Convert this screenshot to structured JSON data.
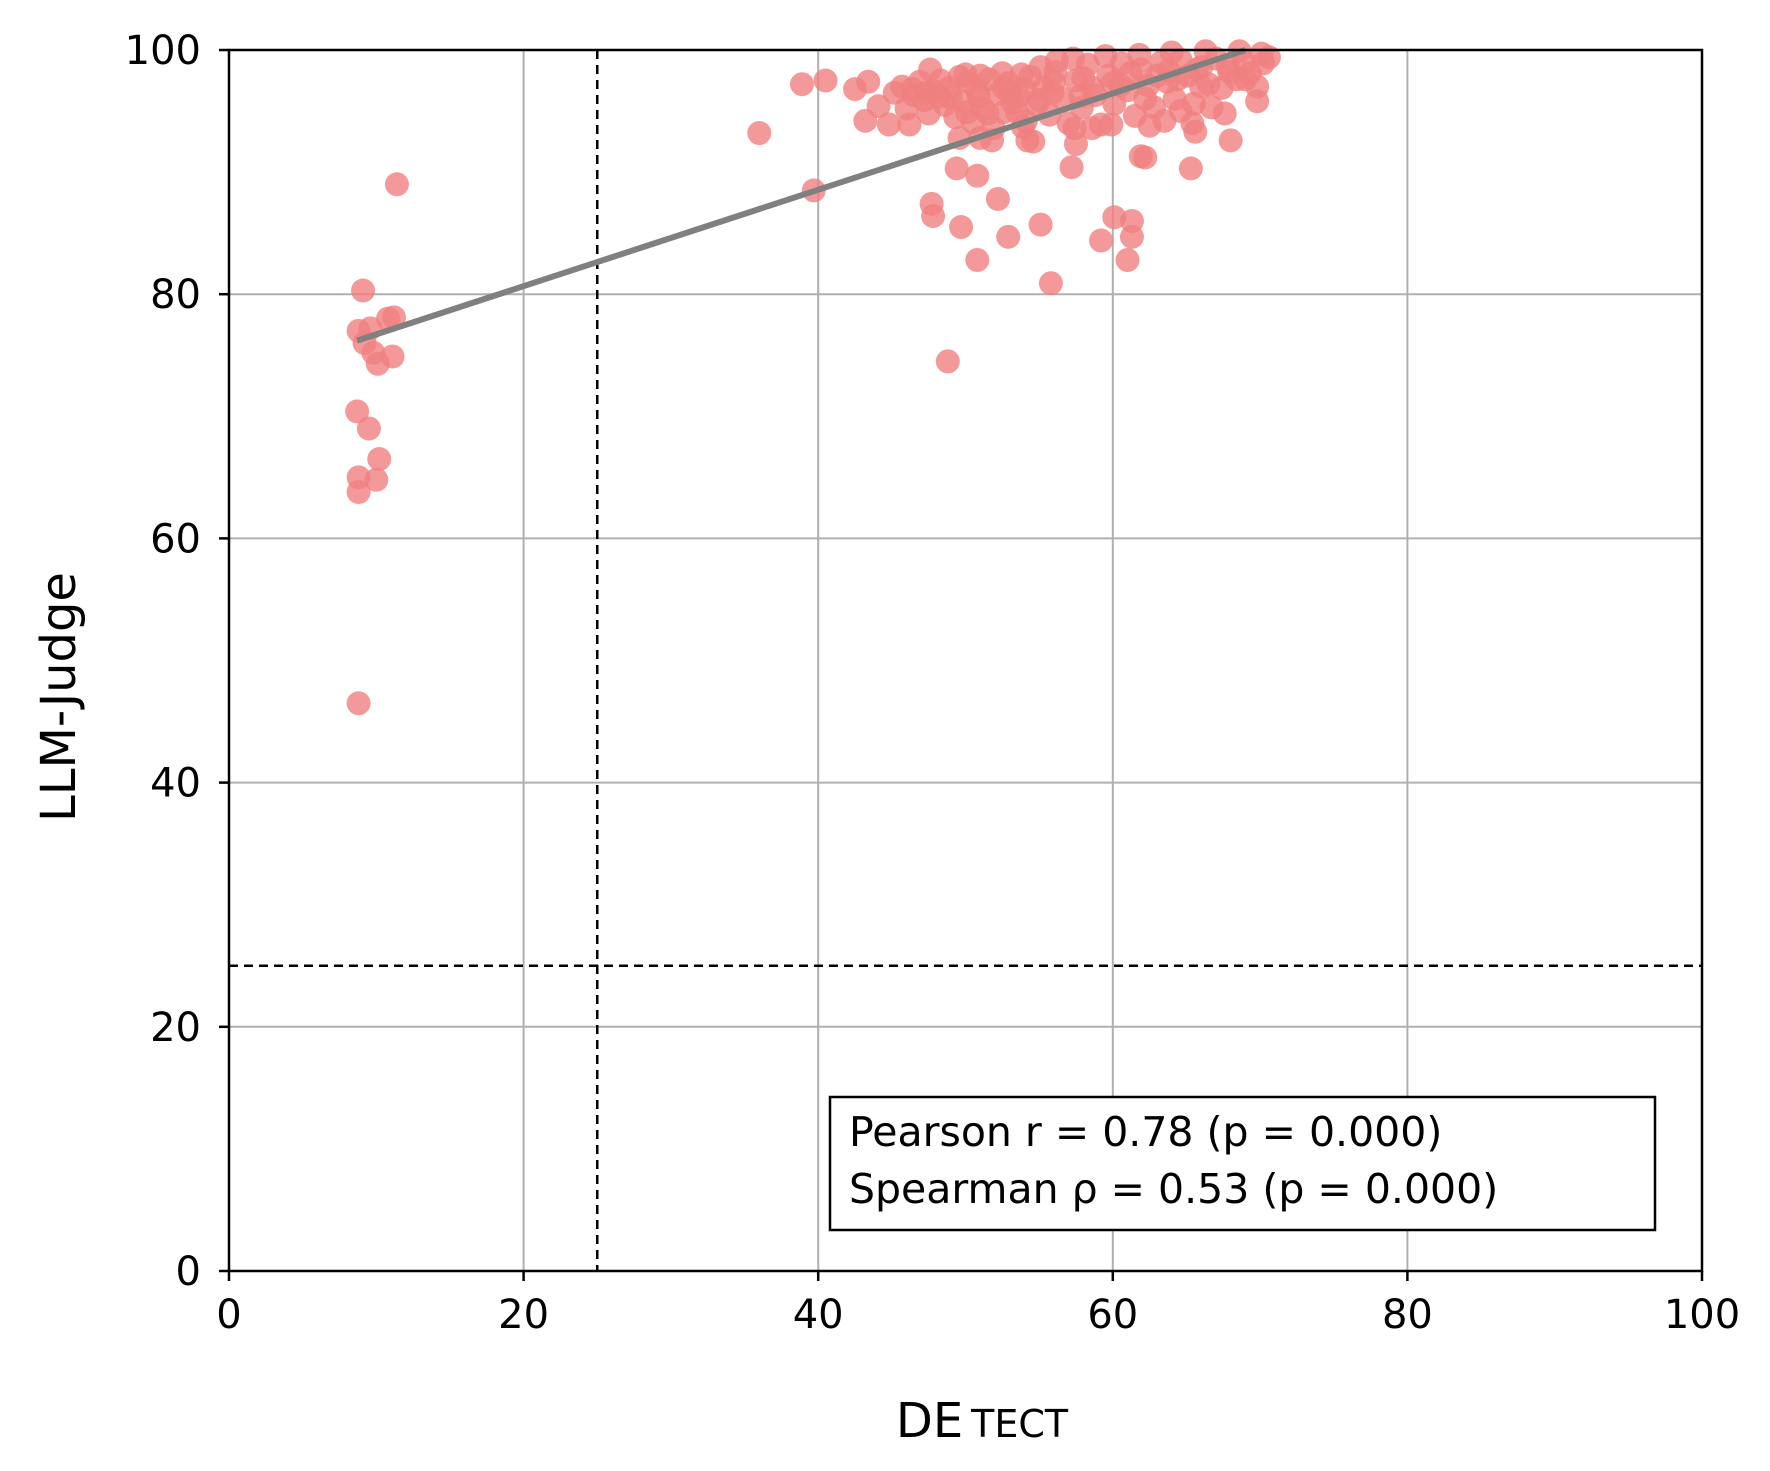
{
  "chart_data": {
    "type": "scatter",
    "title": "",
    "xlabel_main": "DE",
    "xlabel_small": "TECT",
    "ylabel": "LLM-Judge",
    "xlim": [
      0,
      100
    ],
    "ylim": [
      0,
      100
    ],
    "xticks": [
      0,
      20,
      40,
      60,
      80,
      100
    ],
    "yticks": [
      0,
      20,
      40,
      60,
      80,
      100
    ],
    "xtick_labels": [
      "0",
      "20",
      "40",
      "60",
      "80",
      "100"
    ],
    "ytick_labels": [
      "0",
      "20",
      "40",
      "60",
      "80",
      "100"
    ],
    "grid": true,
    "reference_lines": {
      "x": 25,
      "y": 25
    },
    "stats": {
      "pearson": "Pearson r = 0.78 (p = 0.000)",
      "spearman": "Spearman ρ = 0.53 (p = 0.000)"
    },
    "stats_placement": "bottom-right",
    "trend_line": {
      "x": [
        8.7,
        69.0
      ],
      "y": [
        76.2,
        100.0
      ]
    },
    "colors": {
      "points": "#f08080",
      "trend": "#808080",
      "grid": "#b0b0b0"
    },
    "points": [
      [
        8.8,
        46.5
      ],
      [
        8.8,
        63.8
      ],
      [
        8.8,
        65.0
      ],
      [
        8.7,
        70.4
      ],
      [
        9.5,
        69.0
      ],
      [
        10.2,
        66.5
      ],
      [
        10.0,
        64.8
      ],
      [
        8.8,
        77.0
      ],
      [
        9.2,
        76.0
      ],
      [
        9.6,
        77.2
      ],
      [
        9.8,
        75.2
      ],
      [
        10.1,
        74.3
      ],
      [
        11.1,
        74.9
      ],
      [
        10.8,
        78.0
      ],
      [
        11.2,
        78.1
      ],
      [
        9.1,
        80.3
      ],
      [
        11.4,
        89.0
      ],
      [
        36.0,
        93.2
      ],
      [
        38.9,
        97.2
      ],
      [
        40.5,
        97.5
      ],
      [
        39.7,
        88.5
      ],
      [
        42.5,
        96.8
      ],
      [
        43.4,
        97.4
      ],
      [
        43.2,
        94.2
      ],
      [
        44.1,
        95.4
      ],
      [
        44.8,
        93.9
      ],
      [
        45.2,
        96.5
      ],
      [
        45.7,
        97.0
      ],
      [
        46.0,
        95.2
      ],
      [
        46.4,
        96.8
      ],
      [
        46.2,
        93.9
      ],
      [
        46.9,
        97.4
      ],
      [
        47.2,
        95.9
      ],
      [
        47.6,
        98.4
      ],
      [
        47.9,
        96.6
      ],
      [
        47.5,
        94.8
      ],
      [
        48.3,
        97.5
      ],
      [
        48.6,
        95.5
      ],
      [
        48.9,
        96.9
      ],
      [
        49.3,
        94.5
      ],
      [
        49.6,
        97.8
      ],
      [
        49.9,
        95.8
      ],
      [
        50.2,
        97.4
      ],
      [
        50.5,
        94.1
      ],
      [
        50.8,
        96.7
      ],
      [
        51.2,
        95.2
      ],
      [
        51.6,
        97.6
      ],
      [
        51.9,
        93.6
      ],
      [
        52.2,
        96.4
      ],
      [
        52.6,
        94.9
      ],
      [
        52.9,
        97.3
      ],
      [
        53.2,
        95.7
      ],
      [
        53.6,
        96.2
      ],
      [
        54.1,
        94.2
      ],
      [
        54.4,
        97.8
      ],
      [
        54.8,
        95.5
      ],
      [
        55.3,
        96.9
      ],
      [
        55.7,
        94.7
      ],
      [
        56.1,
        98.2
      ],
      [
        56.6,
        96.0
      ],
      [
        57.0,
        94.0
      ],
      [
        57.5,
        97.5
      ],
      [
        57.9,
        95.3
      ],
      [
        58.3,
        98.8
      ],
      [
        58.8,
        96.3
      ],
      [
        59.2,
        93.9
      ],
      [
        59.7,
        97.9
      ],
      [
        60.1,
        95.6
      ],
      [
        60.6,
        98.9
      ],
      [
        61.0,
        96.7
      ],
      [
        61.5,
        94.6
      ],
      [
        61.9,
        98.4
      ],
      [
        62.4,
        97.1
      ],
      [
        62.8,
        95.3
      ],
      [
        63.3,
        99.0
      ],
      [
        63.7,
        97.4
      ],
      [
        64.2,
        96.0
      ],
      [
        64.6,
        99.2
      ],
      [
        65.1,
        97.9
      ],
      [
        65.5,
        95.6
      ],
      [
        66.0,
        98.6
      ],
      [
        66.5,
        97.2
      ],
      [
        67.0,
        99.3
      ],
      [
        67.4,
        96.9
      ],
      [
        67.9,
        98.2
      ],
      [
        68.4,
        97.6
      ],
      [
        68.9,
        99.0
      ],
      [
        69.3,
        98.1
      ],
      [
        69.8,
        97.0
      ],
      [
        70.2,
        98.9
      ],
      [
        70.6,
        99.4
      ],
      [
        69.8,
        95.8
      ],
      [
        68.0,
        92.6
      ],
      [
        67.6,
        94.8
      ],
      [
        66.7,
        95.3
      ],
      [
        65.6,
        93.3
      ],
      [
        65.4,
        94.0
      ],
      [
        65.3,
        90.3
      ],
      [
        64.6,
        95.0
      ],
      [
        63.5,
        94.2
      ],
      [
        62.5,
        93.8
      ],
      [
        62.2,
        91.2
      ],
      [
        61.9,
        91.3
      ],
      [
        61.3,
        86.0
      ],
      [
        61.3,
        84.7
      ],
      [
        61.0,
        82.8
      ],
      [
        60.1,
        86.3
      ],
      [
        59.2,
        84.4
      ],
      [
        59.9,
        93.9
      ],
      [
        58.6,
        93.6
      ],
      [
        57.4,
        93.6
      ],
      [
        57.5,
        92.3
      ],
      [
        57.2,
        90.4
      ],
      [
        55.8,
        80.9
      ],
      [
        55.1,
        85.7
      ],
      [
        54.6,
        92.5
      ],
      [
        54.2,
        92.6
      ],
      [
        53.9,
        93.7
      ],
      [
        52.9,
        84.7
      ],
      [
        52.2,
        87.8
      ],
      [
        51.8,
        92.6
      ],
      [
        51.0,
        92.8
      ],
      [
        50.8,
        89.7
      ],
      [
        50.8,
        82.8
      ],
      [
        49.7,
        85.5
      ],
      [
        49.6,
        92.8
      ],
      [
        49.4,
        90.3
      ],
      [
        48.8,
        74.5
      ],
      [
        47.8,
        86.4
      ],
      [
        47.7,
        87.4
      ],
      [
        47.3,
        96.5
      ],
      [
        50.0,
        98.0
      ],
      [
        51.0,
        97.9
      ],
      [
        52.5,
        98.1
      ],
      [
        53.8,
        98.0
      ],
      [
        55.1,
        98.6
      ],
      [
        56.2,
        99.1
      ],
      [
        57.3,
        99.3
      ],
      [
        59.5,
        99.5
      ],
      [
        61.8,
        99.6
      ],
      [
        64.0,
        99.8
      ],
      [
        66.3,
        99.9
      ],
      [
        68.6,
        99.9
      ],
      [
        70.1,
        99.7
      ],
      [
        53.0,
        96.5
      ],
      [
        55.0,
        95.9
      ],
      [
        58.0,
        97.7
      ],
      [
        60.5,
        97.1
      ],
      [
        63.0,
        97.9
      ],
      [
        65.7,
        98.4
      ],
      [
        67.8,
        98.7
      ],
      [
        49.0,
        96.1
      ],
      [
        50.9,
        96.2
      ],
      [
        52.6,
        96.9
      ],
      [
        54.0,
        96.8
      ],
      [
        56.0,
        97.4
      ],
      [
        58.6,
        96.9
      ],
      [
        61.2,
        98.1
      ],
      [
        63.8,
        98.3
      ],
      [
        66.0,
        97.0
      ],
      [
        69.0,
        97.6
      ],
      [
        46.5,
        96.3
      ],
      [
        48.2,
        96.2
      ],
      [
        50.1,
        94.9
      ],
      [
        51.5,
        94.8
      ],
      [
        53.5,
        94.9
      ],
      [
        55.9,
        96.5
      ],
      [
        57.8,
        96.2
      ],
      [
        60.0,
        97.3
      ],
      [
        62.2,
        96.0
      ],
      [
        64.4,
        97.6
      ]
    ]
  }
}
